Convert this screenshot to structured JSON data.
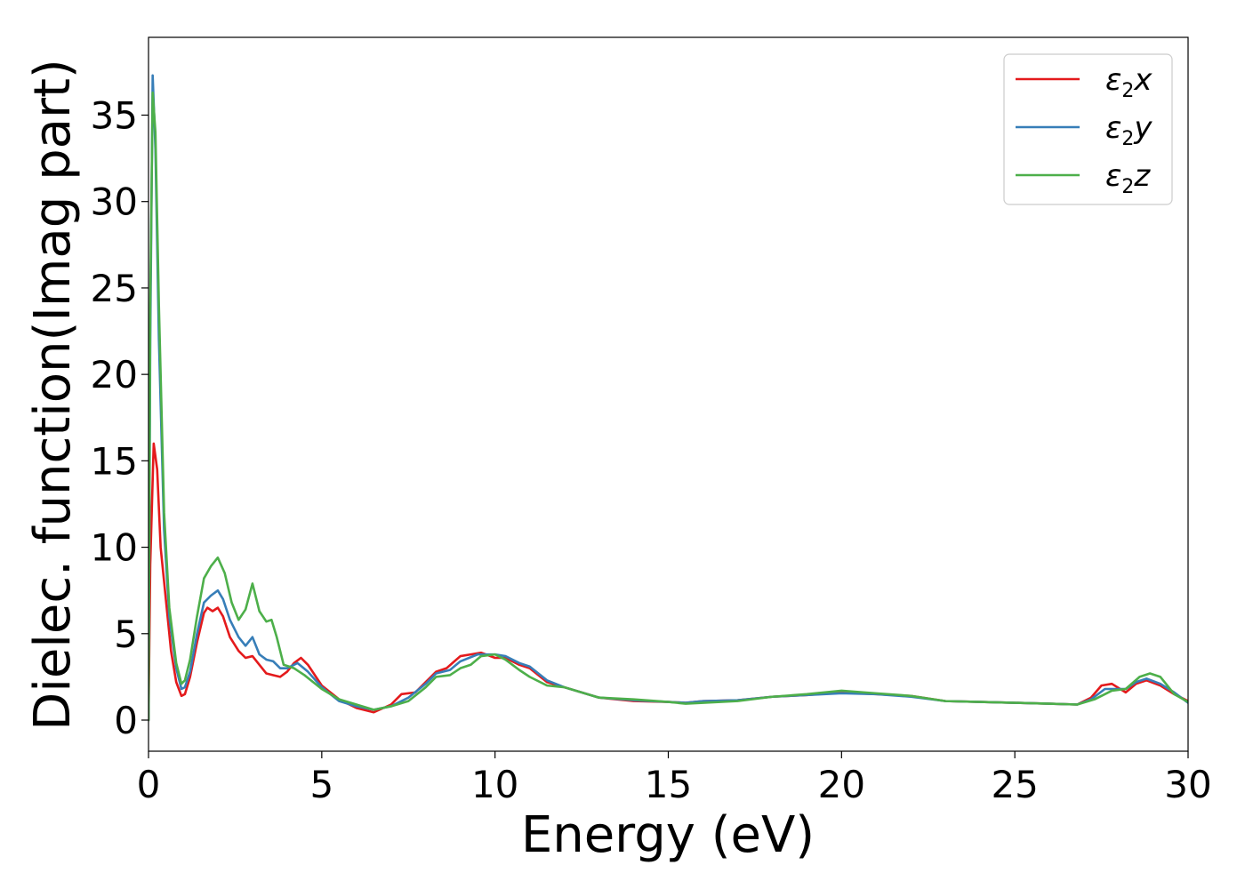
{
  "chart_data": {
    "type": "line",
    "title": "",
    "xlabel": "Energy (eV)",
    "ylabel": "Dielec. function(Imag part)",
    "xlim": [
      0,
      30
    ],
    "ylim": [
      -1.8,
      39.5
    ],
    "xticks": [
      0,
      5,
      10,
      15,
      20,
      25,
      30
    ],
    "yticks": [
      0,
      5,
      10,
      15,
      20,
      25,
      30,
      35
    ],
    "xtick_labels": [
      "0",
      "5",
      "10",
      "15",
      "20",
      "25",
      "30"
    ],
    "ytick_labels": [
      "0",
      "5",
      "10",
      "15",
      "20",
      "25",
      "30",
      "35"
    ],
    "grid": false,
    "legend_position": "top-right",
    "series": [
      {
        "name": "ε2x",
        "legend_main": "ε",
        "legend_sub": "2",
        "legend_tail": "x",
        "color": "#e41a1c",
        "points": [
          [
            0.0,
            0.0
          ],
          [
            0.05,
            9.0
          ],
          [
            0.15,
            16.0
          ],
          [
            0.25,
            14.5
          ],
          [
            0.35,
            10.0
          ],
          [
            0.5,
            7.0
          ],
          [
            0.65,
            4.0
          ],
          [
            0.8,
            2.2
          ],
          [
            0.95,
            1.4
          ],
          [
            1.05,
            1.5
          ],
          [
            1.2,
            2.5
          ],
          [
            1.4,
            4.5
          ],
          [
            1.6,
            6.2
          ],
          [
            1.7,
            6.5
          ],
          [
            1.85,
            6.3
          ],
          [
            2.0,
            6.5
          ],
          [
            2.15,
            6.0
          ],
          [
            2.35,
            4.8
          ],
          [
            2.6,
            4.0
          ],
          [
            2.8,
            3.6
          ],
          [
            3.0,
            3.7
          ],
          [
            3.2,
            3.2
          ],
          [
            3.4,
            2.7
          ],
          [
            3.6,
            2.6
          ],
          [
            3.8,
            2.5
          ],
          [
            4.0,
            2.8
          ],
          [
            4.2,
            3.3
          ],
          [
            4.4,
            3.6
          ],
          [
            4.6,
            3.2
          ],
          [
            5.0,
            2.0
          ],
          [
            5.5,
            1.2
          ],
          [
            6.0,
            0.7
          ],
          [
            6.5,
            0.45
          ],
          [
            7.0,
            0.9
          ],
          [
            7.3,
            1.5
          ],
          [
            7.7,
            1.6
          ],
          [
            8.0,
            2.2
          ],
          [
            8.3,
            2.8
          ],
          [
            8.6,
            3.0
          ],
          [
            9.0,
            3.7
          ],
          [
            9.3,
            3.8
          ],
          [
            9.6,
            3.9
          ],
          [
            10.0,
            3.6
          ],
          [
            10.3,
            3.6
          ],
          [
            10.7,
            3.2
          ],
          [
            11.0,
            3.0
          ],
          [
            11.5,
            2.2
          ],
          [
            12.0,
            1.9
          ],
          [
            12.5,
            1.6
          ],
          [
            13.0,
            1.3
          ],
          [
            14.0,
            1.1
          ],
          [
            15.0,
            1.05
          ],
          [
            15.5,
            1.0
          ],
          [
            16.0,
            1.1
          ],
          [
            17.0,
            1.15
          ],
          [
            18.0,
            1.35
          ],
          [
            19.0,
            1.45
          ],
          [
            20.0,
            1.6
          ],
          [
            21.0,
            1.5
          ],
          [
            22.0,
            1.4
          ],
          [
            23.0,
            1.1
          ],
          [
            24.0,
            1.05
          ],
          [
            25.0,
            1.0
          ],
          [
            26.0,
            0.95
          ],
          [
            26.8,
            0.9
          ],
          [
            27.2,
            1.3
          ],
          [
            27.5,
            2.0
          ],
          [
            27.8,
            2.1
          ],
          [
            28.2,
            1.6
          ],
          [
            28.5,
            2.1
          ],
          [
            28.8,
            2.3
          ],
          [
            29.2,
            2.0
          ],
          [
            29.6,
            1.5
          ],
          [
            30.0,
            1.1
          ]
        ]
      },
      {
        "name": "ε2y",
        "legend_main": "ε",
        "legend_sub": "2",
        "legend_tail": "y",
        "color": "#377eb8",
        "points": [
          [
            0.0,
            0.0
          ],
          [
            0.05,
            22.0
          ],
          [
            0.12,
            37.3
          ],
          [
            0.2,
            33.0
          ],
          [
            0.3,
            22.0
          ],
          [
            0.45,
            11.0
          ],
          [
            0.6,
            6.0
          ],
          [
            0.8,
            3.0
          ],
          [
            0.95,
            1.8
          ],
          [
            1.05,
            1.9
          ],
          [
            1.2,
            2.8
          ],
          [
            1.4,
            5.0
          ],
          [
            1.6,
            6.8
          ],
          [
            1.8,
            7.2
          ],
          [
            2.0,
            7.5
          ],
          [
            2.15,
            7.0
          ],
          [
            2.35,
            5.8
          ],
          [
            2.6,
            4.8
          ],
          [
            2.8,
            4.3
          ],
          [
            3.0,
            4.8
          ],
          [
            3.2,
            3.8
          ],
          [
            3.4,
            3.5
          ],
          [
            3.6,
            3.4
          ],
          [
            3.8,
            3.0
          ],
          [
            4.0,
            3.0
          ],
          [
            4.3,
            3.3
          ],
          [
            4.6,
            2.8
          ],
          [
            5.0,
            1.9
          ],
          [
            5.5,
            1.1
          ],
          [
            6.0,
            0.8
          ],
          [
            6.5,
            0.6
          ],
          [
            7.0,
            0.8
          ],
          [
            7.5,
            1.3
          ],
          [
            8.0,
            2.1
          ],
          [
            8.3,
            2.7
          ],
          [
            8.7,
            2.9
          ],
          [
            9.0,
            3.4
          ],
          [
            9.5,
            3.8
          ],
          [
            10.0,
            3.8
          ],
          [
            10.3,
            3.7
          ],
          [
            10.7,
            3.3
          ],
          [
            11.0,
            3.1
          ],
          [
            11.5,
            2.3
          ],
          [
            12.0,
            1.9
          ],
          [
            13.0,
            1.3
          ],
          [
            14.0,
            1.15
          ],
          [
            15.0,
            1.05
          ],
          [
            15.5,
            1.0
          ],
          [
            16.0,
            1.1
          ],
          [
            17.0,
            1.15
          ],
          [
            18.0,
            1.35
          ],
          [
            19.0,
            1.45
          ],
          [
            20.0,
            1.55
          ],
          [
            21.0,
            1.5
          ],
          [
            22.0,
            1.35
          ],
          [
            23.0,
            1.1
          ],
          [
            24.0,
            1.05
          ],
          [
            25.0,
            1.0
          ],
          [
            26.0,
            0.95
          ],
          [
            26.8,
            0.9
          ],
          [
            27.2,
            1.2
          ],
          [
            27.6,
            1.8
          ],
          [
            28.2,
            1.8
          ],
          [
            28.5,
            2.2
          ],
          [
            28.8,
            2.4
          ],
          [
            29.2,
            2.1
          ],
          [
            29.6,
            1.6
          ],
          [
            30.0,
            1.0
          ]
        ]
      },
      {
        "name": "ε2z",
        "legend_main": "ε",
        "legend_sub": "2",
        "legend_tail": "z",
        "color": "#4daf4a",
        "points": [
          [
            0.0,
            0.0
          ],
          [
            0.05,
            24.0
          ],
          [
            0.12,
            36.3
          ],
          [
            0.2,
            34.0
          ],
          [
            0.3,
            24.0
          ],
          [
            0.45,
            12.0
          ],
          [
            0.6,
            6.5
          ],
          [
            0.8,
            3.3
          ],
          [
            0.95,
            2.1
          ],
          [
            1.05,
            2.3
          ],
          [
            1.2,
            3.5
          ],
          [
            1.4,
            6.0
          ],
          [
            1.6,
            8.2
          ],
          [
            1.8,
            8.9
          ],
          [
            2.0,
            9.4
          ],
          [
            2.2,
            8.5
          ],
          [
            2.4,
            6.8
          ],
          [
            2.6,
            5.8
          ],
          [
            2.8,
            6.4
          ],
          [
            3.0,
            7.9
          ],
          [
            3.2,
            6.3
          ],
          [
            3.4,
            5.7
          ],
          [
            3.55,
            5.8
          ],
          [
            3.7,
            4.8
          ],
          [
            3.9,
            3.2
          ],
          [
            4.2,
            3.0
          ],
          [
            4.5,
            2.6
          ],
          [
            5.0,
            1.8
          ],
          [
            5.5,
            1.2
          ],
          [
            6.0,
            0.9
          ],
          [
            6.5,
            0.6
          ],
          [
            7.0,
            0.8
          ],
          [
            7.5,
            1.1
          ],
          [
            8.0,
            1.9
          ],
          [
            8.3,
            2.5
          ],
          [
            8.7,
            2.6
          ],
          [
            9.0,
            3.0
          ],
          [
            9.3,
            3.2
          ],
          [
            9.6,
            3.7
          ],
          [
            10.0,
            3.8
          ],
          [
            10.3,
            3.5
          ],
          [
            10.7,
            2.9
          ],
          [
            11.0,
            2.5
          ],
          [
            11.5,
            2.0
          ],
          [
            12.0,
            1.9
          ],
          [
            13.0,
            1.3
          ],
          [
            14.0,
            1.2
          ],
          [
            15.0,
            1.05
          ],
          [
            15.5,
            0.95
          ],
          [
            16.0,
            1.0
          ],
          [
            17.0,
            1.1
          ],
          [
            18.0,
            1.35
          ],
          [
            19.0,
            1.5
          ],
          [
            20.0,
            1.7
          ],
          [
            21.0,
            1.55
          ],
          [
            22.0,
            1.4
          ],
          [
            23.0,
            1.1
          ],
          [
            24.0,
            1.05
          ],
          [
            25.0,
            1.0
          ],
          [
            26.0,
            0.95
          ],
          [
            26.8,
            0.9
          ],
          [
            27.3,
            1.2
          ],
          [
            27.8,
            1.7
          ],
          [
            28.2,
            1.8
          ],
          [
            28.6,
            2.5
          ],
          [
            28.9,
            2.7
          ],
          [
            29.2,
            2.5
          ],
          [
            29.6,
            1.5
          ],
          [
            30.0,
            1.05
          ]
        ]
      }
    ]
  }
}
